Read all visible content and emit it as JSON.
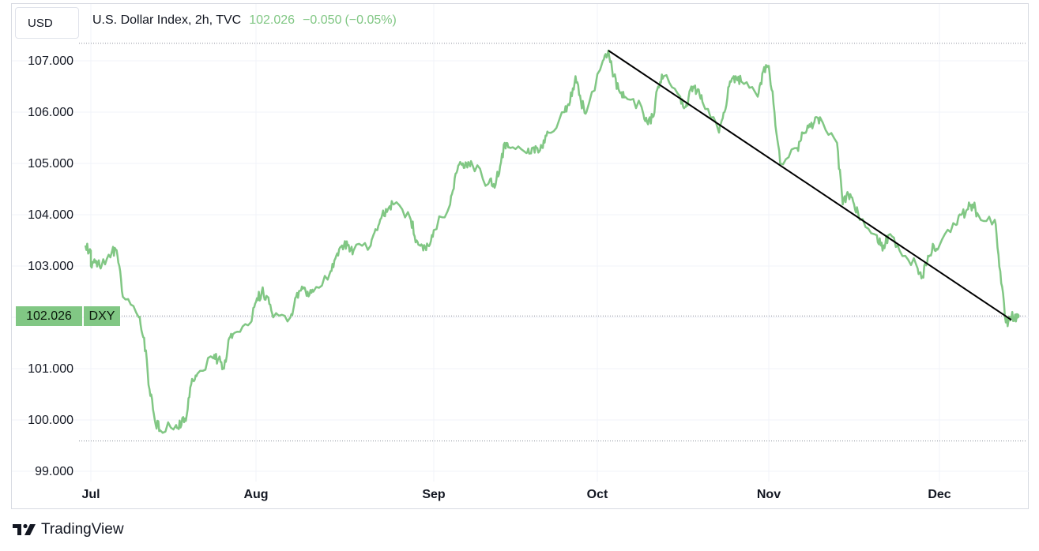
{
  "header": {
    "symbol_box": "USD",
    "title": "U.S. Dollar Index, 2h, TVC",
    "last": "102.026",
    "change": "−0.050",
    "change_pct": "(−0.05%)"
  },
  "price_tag": {
    "price": "102.026",
    "ticker": "DXY"
  },
  "brand": {
    "name": "TradingView"
  },
  "colors": {
    "series": "#81c784",
    "trendline": "#000000",
    "grid": "#f0f3fa",
    "axis_text": "#131722"
  },
  "chart_data": {
    "type": "line",
    "title": "U.S. Dollar Index, 2h, TVC",
    "ylim": [
      99.0,
      107.3
    ],
    "y_ticks": [
      "107.000",
      "106.000",
      "105.000",
      "104.000",
      "103.000",
      "102.000",
      "101.000",
      "100.000",
      "99.000"
    ],
    "x_ticks": [
      "Jul",
      "Aug",
      "Sep",
      "Oct",
      "Nov",
      "Dec"
    ],
    "grid": true,
    "last_price_line": 102.026,
    "low_line": 99.59,
    "high_line": 107.34,
    "series": [
      {
        "x": [
          "Jun 29",
          "Jun 30",
          "Jul 1",
          "Jul 2",
          "Jul 3",
          "Jul 5",
          "Jul 6",
          "Jul 7",
          "Jul 10",
          "Jul 11",
          "Jul 12",
          "Jul 13",
          "Jul 14",
          "Jul 17",
          "Jul 18",
          "Jul 19",
          "Jul 20",
          "Jul 21",
          "Jul 24",
          "Jul 25",
          "Jul 26",
          "Jul 27",
          "Jul 28",
          "Jul 31",
          "Aug 1",
          "Aug 2",
          "Aug 3",
          "Aug 4",
          "Aug 7",
          "Aug 8",
          "Aug 9",
          "Aug 10",
          "Aug 11",
          "Aug 14",
          "Aug 15",
          "Aug 16",
          "Aug 17",
          "Aug 18",
          "Aug 21",
          "Aug 22",
          "Aug 23",
          "Aug 24",
          "Aug 25",
          "Aug 28",
          "Aug 29",
          "Aug 30",
          "Aug 31",
          "Sep 1",
          "Sep 4",
          "Sep 5",
          "Sep 6",
          "Sep 7",
          "Sep 8",
          "Sep 11",
          "Sep 12",
          "Sep 13",
          "Sep 14",
          "Sep 15",
          "Sep 18",
          "Sep 19",
          "Sep 20",
          "Sep 21",
          "Sep 22",
          "Sep 25",
          "Sep 26",
          "Sep 27",
          "Sep 28",
          "Sep 29",
          "Oct 2",
          "Oct 3",
          "Oct 4",
          "Oct 5",
          "Oct 6",
          "Oct 9",
          "Oct 10",
          "Oct 11",
          "Oct 12",
          "Oct 13",
          "Oct 16",
          "Oct 17",
          "Oct 18",
          "Oct 19",
          "Oct 20",
          "Oct 23",
          "Oct 24",
          "Oct 25",
          "Oct 26",
          "Oct 27",
          "Oct 30",
          "Oct 31",
          "Nov 1",
          "Nov 2",
          "Nov 3",
          "Nov 6",
          "Nov 7",
          "Nov 8",
          "Nov 9",
          "Nov 10",
          "Nov 13",
          "Nov 14",
          "Nov 15",
          "Nov 16",
          "Nov 17",
          "Nov 20",
          "Nov 21",
          "Nov 22",
          "Nov 24",
          "Nov 27",
          "Nov 28",
          "Nov 29",
          "Nov 30",
          "Dec 1",
          "Dec 4",
          "Dec 5",
          "Dec 6",
          "Dec 7",
          "Dec 8",
          "Dec 11",
          "Dec 12",
          "Dec 13",
          "Dec 14",
          "Dec 15"
        ],
        "values": [
          103.4,
          103.3,
          103.0,
          103.1,
          103.0,
          103.3,
          103.2,
          102.4,
          102.0,
          101.6,
          100.6,
          100.0,
          99.8,
          99.9,
          99.9,
          100.1,
          100.8,
          100.9,
          101.2,
          101.2,
          101.0,
          101.6,
          101.7,
          101.9,
          102.3,
          102.5,
          102.4,
          102.0,
          102.0,
          102.4,
          102.6,
          102.5,
          102.5,
          102.9,
          103.2,
          103.4,
          103.4,
          103.3,
          103.4,
          103.7,
          104.0,
          104.1,
          104.2,
          103.9,
          103.5,
          103.4,
          103.4,
          103.7,
          104.2,
          104.8,
          105.0,
          105.0,
          105.0,
          104.6,
          104.6,
          104.8,
          105.4,
          105.3,
          105.2,
          105.3,
          105.3,
          105.3,
          105.6,
          106.0,
          106.2,
          106.7,
          106.2,
          106.0,
          107.0,
          107.2,
          106.7,
          106.4,
          106.3,
          106.1,
          105.8,
          105.9,
          106.5,
          106.7,
          106.3,
          106.1,
          106.5,
          106.4,
          106.2,
          105.6,
          106.0,
          106.6,
          106.7,
          106.6,
          106.3,
          106.8,
          106.9,
          106.0,
          105.0,
          105.3,
          105.6,
          105.7,
          105.8,
          105.9,
          105.4,
          104.2,
          104.4,
          104.2,
          103.9,
          103.6,
          103.3,
          103.6,
          103.3,
          103.0,
          102.8,
          103.2,
          103.4,
          103.4,
          103.8,
          104.0,
          104.1,
          104.2,
          104.0,
          103.9,
          102.9,
          101.9,
          102.0,
          102.026
        ]
      }
    ],
    "trendline": {
      "start": {
        "x": "Oct 3",
        "y": 107.2
      },
      "end": {
        "x": "Dec 14",
        "y": 101.95
      }
    }
  }
}
